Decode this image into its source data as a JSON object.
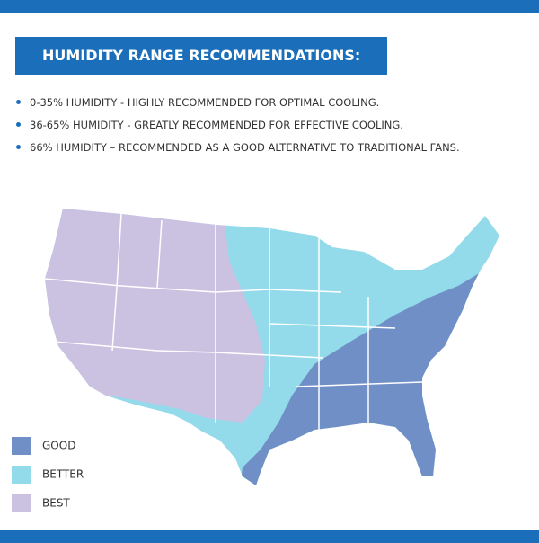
{
  "header": {
    "title": "HUMIDITY RANGE RECOMMENDATIONS:"
  },
  "bullets": [
    "0-35% HUMIDITY - HIGHLY RECOMMENDED FOR OPTIMAL COOLING.",
    "36-65% HUMIDITY - GREATLY RECOMMENDED FOR EFFECTIVE COOLING.",
    "66% HUMIDITY – RECOMMENDED AS A GOOD ALTERNATIVE TO TRADITIONAL FANS."
  ],
  "legend": [
    {
      "label": "GOOD",
      "color": "#6f8fc6"
    },
    {
      "label": "BETTER",
      "color": "#93daea"
    },
    {
      "label": "BEST",
      "color": "#cbc1e1"
    }
  ]
}
